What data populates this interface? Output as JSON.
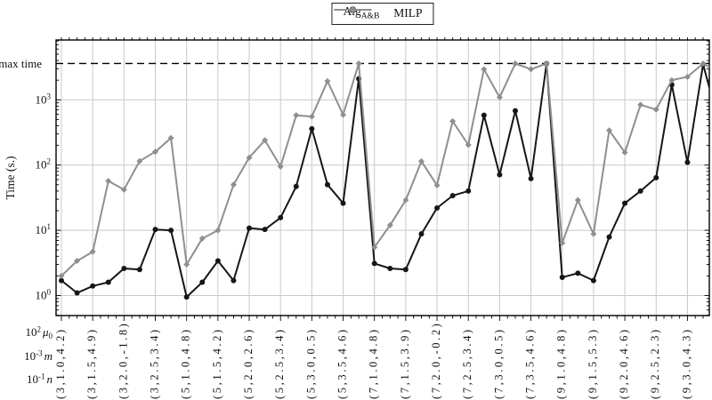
{
  "figure": {
    "legend": {
      "items": [
        {
          "label": "Alg",
          "label_sub": "A&B",
          "series": "Alg_A&B"
        },
        {
          "label": "MILP",
          "label_sub": "",
          "series": "MILP"
        }
      ]
    }
  },
  "chart_data": {
    "type": "line",
    "title": "",
    "ylabel": "Time (s.)",
    "y_scale": "log",
    "ylim": [
      0.49,
      8200
    ],
    "grid": true,
    "legend_position": "top-center",
    "x_tick_rotation": 90,
    "y_tick_labels": [
      {
        "base": "10",
        "exp": "0"
      },
      {
        "base": "10",
        "exp": "1"
      },
      {
        "base": "10",
        "exp": "2"
      },
      {
        "base": "10",
        "exp": "3"
      }
    ],
    "max_time": {
      "label": "max time",
      "value": 3600,
      "style": "dashed"
    },
    "x_axis_key": [
      {
        "base": "10",
        "exp": "2",
        "var": "μ",
        "var_sub": "0"
      },
      {
        "base": "10",
        "exp": "-3",
        "var": "m",
        "var_sub": ""
      },
      {
        "base": "10",
        "exp": "-1",
        "var": "n",
        "var_sub": ""
      }
    ],
    "x_tick_labels": [
      "(3,1.0,4.2)",
      "(3,1.5,4.9)",
      "(3,2.0,-1.8)",
      "(3,2.5,3.4)",
      "(5,1.0,4.8)",
      "(5,1.5,4.2)",
      "(5,2.0,2.6)",
      "(5,2.5,3.4)",
      "(5,3.0,0.5)",
      "(5,3.5,4.6)",
      "(7,1.0,4.8)",
      "(7,1.5,3.9)",
      "(7,2.0,-0.2)",
      "(7,2.5,3.4)",
      "(7,3.0,0.5)",
      "(7,3.5,4.6)",
      "(9,1.0,4.8)",
      "(9,1.5,5.3)",
      "(9,2.0,4.6)",
      "(9,2.5,2.3)",
      "(9,3.0,4.3)"
    ],
    "points_per_label": 2,
    "n_points": 42,
    "series": [
      {
        "name": "Alg_A&B",
        "color": "#161616",
        "marker": "circle",
        "values": [
          1.7,
          1.1,
          1.4,
          1.6,
          2.6,
          2.5,
          10.3,
          10,
          0.95,
          1.6,
          3.4,
          1.7,
          10.8,
          10.3,
          15.6,
          47,
          360,
          50,
          26,
          2100,
          3.1,
          2.6,
          2.5,
          8.8,
          22,
          34,
          40,
          580,
          71,
          680,
          62,
          3600,
          1.9,
          2.2,
          1.7,
          7.9,
          26,
          40,
          64,
          1700,
          110,
          3500
        ],
        "clipped_next": 300
      },
      {
        "name": "MILP",
        "color": "#8f8f8f",
        "marker": "diamond",
        "values": [
          2.0,
          3.4,
          4.7,
          57,
          42,
          115,
          160,
          260,
          3.0,
          7.5,
          10,
          50,
          130,
          240,
          95,
          580,
          555,
          1930,
          590,
          3600,
          5.5,
          12,
          29,
          114,
          49,
          470,
          204,
          2940,
          1090,
          3600,
          2940,
          3600,
          6.4,
          29,
          8.8,
          340,
          156,
          840,
          710,
          2000,
          2250,
          3600
        ],
        "clipped_next": 2500
      }
    ]
  }
}
